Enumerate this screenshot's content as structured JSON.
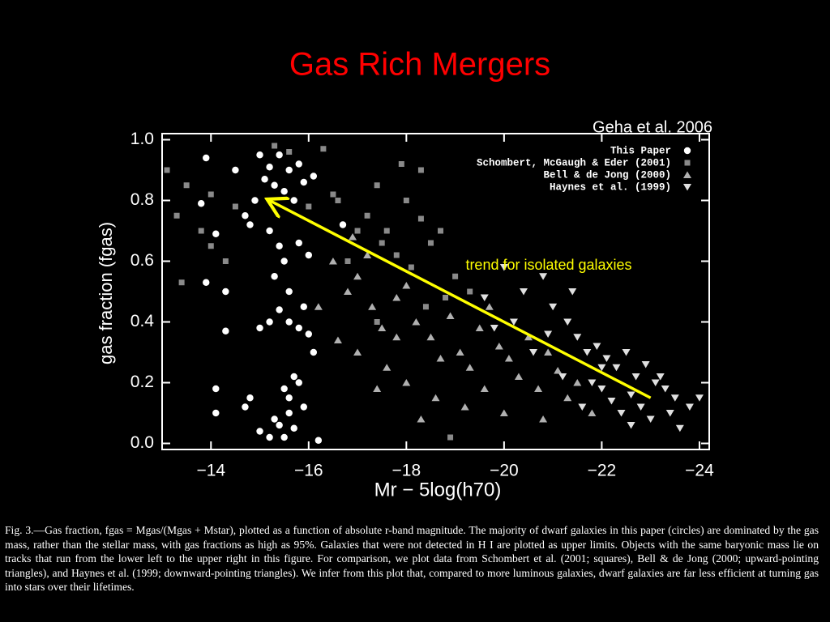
{
  "chart_data": {
    "type": "scatter",
    "title": "Gas Rich Mergers",
    "source_note": "Geha et al. 2006",
    "xlabel": "Mr − 5log(h70)",
    "ylabel": "gas fraction (fgas)",
    "xlim": [
      -13.0,
      -24.2
    ],
    "ylim": [
      -0.02,
      1.02
    ],
    "xticks": [
      {
        "value": -14,
        "label": "−14"
      },
      {
        "value": -16,
        "label": "−16"
      },
      {
        "value": -18,
        "label": "−18"
      },
      {
        "value": -20,
        "label": "−20"
      },
      {
        "value": -22,
        "label": "−22"
      },
      {
        "value": -24,
        "label": "−24"
      }
    ],
    "yticks": [
      {
        "value": 0,
        "label": "0.0"
      },
      0.2,
      0.4,
      0.6,
      0.8,
      {
        "value": 1,
        "label": "1.0"
      }
    ],
    "legend": "upper right",
    "series": [
      {
        "name": "This Paper",
        "color": "#ffffff",
        "marker": "circle",
        "x": [
          -13.9,
          -13.8,
          -14.1,
          -14.5,
          -14.7,
          -14.8,
          -14.9,
          -15.0,
          -15.1,
          -15.2,
          -15.3,
          -15.4,
          -15.5,
          -15.6,
          -15.7,
          -15.8,
          -15.9,
          -16.1,
          -16.7,
          -15.2,
          -15.4,
          -15.5,
          -15.3,
          -15.6,
          -15.8,
          -16.0,
          -15.9,
          -15.2,
          -15.4,
          -15.0,
          -15.6,
          -15.8,
          -16.0,
          -16.1,
          -13.9,
          -14.3,
          -14.3,
          -14.1,
          -14.1,
          -14.7,
          -14.8,
          -15.7,
          -15.8,
          -15.5,
          -15.6,
          -15.3,
          -15.4,
          -15.0,
          -15.2,
          -15.5,
          -15.7,
          -16.2,
          -15.6,
          -15.9
        ],
        "y": [
          0.94,
          0.79,
          0.69,
          0.9,
          0.75,
          0.72,
          0.8,
          0.95,
          0.87,
          0.91,
          0.85,
          0.95,
          0.83,
          0.9,
          0.8,
          0.92,
          0.86,
          0.88,
          0.72,
          0.7,
          0.65,
          0.6,
          0.55,
          0.5,
          0.66,
          0.62,
          0.45,
          0.4,
          0.44,
          0.38,
          0.4,
          0.38,
          0.36,
          0.3,
          0.53,
          0.5,
          0.37,
          0.18,
          0.1,
          0.12,
          0.15,
          0.22,
          0.2,
          0.18,
          0.1,
          0.08,
          0.06,
          0.04,
          0.02,
          0.02,
          0.05,
          0.01,
          0.15,
          0.12
        ]
      },
      {
        "name": "Schombert, McGaugh & Eder (2001)",
        "color": "#8a8a8a",
        "marker": "square",
        "x": [
          -13.1,
          -13.5,
          -13.3,
          -13.8,
          -14.0,
          -13.4,
          -14.3,
          -14.5,
          -15.3,
          -15.6,
          -16.3,
          -16.0,
          -16.6,
          -17.0,
          -16.8,
          -17.2,
          -17.4,
          -17.6,
          -17.8,
          -18.0,
          -18.3,
          -18.5,
          -18.7,
          -18.3,
          -17.9,
          -17.5,
          -19.0,
          -18.8,
          -18.4,
          -19.3,
          -18.1,
          -17.4,
          -18.9,
          -14.0,
          -16.5
        ],
        "y": [
          0.9,
          0.85,
          0.75,
          0.7,
          0.65,
          0.53,
          0.6,
          0.78,
          0.98,
          0.96,
          0.97,
          0.78,
          0.8,
          0.7,
          0.6,
          0.75,
          0.85,
          0.7,
          0.62,
          0.8,
          0.74,
          0.66,
          0.7,
          0.9,
          0.92,
          0.66,
          0.55,
          0.48,
          0.45,
          0.5,
          0.58,
          0.4,
          0.02,
          0.82,
          0.82
        ]
      },
      {
        "name": "Bell & de Jong (2000)",
        "color": "#b0b0b0",
        "marker": "triangle-up",
        "x": [
          -16.5,
          -16.8,
          -17.0,
          -17.2,
          -17.3,
          -17.5,
          -17.8,
          -18.0,
          -18.2,
          -18.5,
          -18.7,
          -18.9,
          -19.1,
          -19.3,
          -19.5,
          -19.7,
          -19.9,
          -20.1,
          -20.3,
          -20.5,
          -20.7,
          -20.9,
          -21.1,
          -21.3,
          -21.5,
          -18.6,
          -18.0,
          -17.6,
          -17.0,
          -19.2,
          -20.0,
          -16.2,
          -16.6,
          -17.4,
          -18.3,
          -19.6,
          -20.8,
          -21.8,
          -16.9,
          -17.8
        ],
        "y": [
          0.6,
          0.5,
          0.55,
          0.62,
          0.45,
          0.38,
          0.48,
          0.52,
          0.4,
          0.35,
          0.28,
          0.42,
          0.3,
          0.25,
          0.38,
          0.45,
          0.32,
          0.28,
          0.22,
          0.35,
          0.18,
          0.3,
          0.24,
          0.15,
          0.2,
          0.15,
          0.2,
          0.25,
          0.3,
          0.12,
          0.1,
          0.45,
          0.34,
          0.18,
          0.08,
          0.18,
          0.08,
          0.1,
          0.68,
          0.35
        ]
      },
      {
        "name": "Haynes et al. (1999)",
        "color": "#e0e0e0",
        "marker": "triangle-down",
        "x": [
          -20.0,
          -20.4,
          -20.8,
          -21.0,
          -21.3,
          -21.5,
          -21.7,
          -21.9,
          -22.1,
          -22.3,
          -22.5,
          -22.7,
          -22.9,
          -23.1,
          -23.3,
          -23.5,
          -22.0,
          -22.2,
          -22.4,
          -22.6,
          -22.8,
          -23.0,
          -23.2,
          -23.6,
          -23.8,
          -24.0,
          -21.2,
          -21.6,
          -20.6,
          -20.2,
          -19.6,
          -19.8,
          -21.4,
          -22.6,
          -23.4,
          -22.0,
          -21.8,
          -20.9
        ],
        "y": [
          0.58,
          0.5,
          0.55,
          0.45,
          0.4,
          0.35,
          0.3,
          0.32,
          0.28,
          0.25,
          0.3,
          0.22,
          0.26,
          0.2,
          0.18,
          0.15,
          0.18,
          0.14,
          0.1,
          0.16,
          0.12,
          0.08,
          0.22,
          0.05,
          0.12,
          0.15,
          0.22,
          0.12,
          0.3,
          0.4,
          0.48,
          0.38,
          0.5,
          0.06,
          0.1,
          0.25,
          0.2,
          0.36
        ]
      }
    ],
    "trend_arrow": {
      "label": "trend for isolated galaxies",
      "color": "#ffff00",
      "x": [
        -23.0,
        -15.2
      ],
      "y": [
        0.15,
        0.8
      ]
    },
    "caption": "Fig. 3.—Gas fraction, fgas = Mgas/(Mgas + Mstar), plotted as a function of absolute r-band magnitude. The majority of dwarf galaxies in this paper (circles) are dominated by the gas mass, rather than the stellar mass, with gas fractions as high as 95%. Galaxies that were not detected in H I are plotted as upper limits. Objects with the same baryonic mass lie on tracks that run from the lower left to the upper right in this figure. For comparison, we plot data from Schombert et al. (2001; squares), Bell & de Jong (2000; upward-pointing triangles), and Haynes et al. (1999; downward-pointing triangles). We infer from this plot that, compared to more luminous galaxies, dwarf galaxies are far less efficient at turning gas into stars over their lifetimes."
  }
}
